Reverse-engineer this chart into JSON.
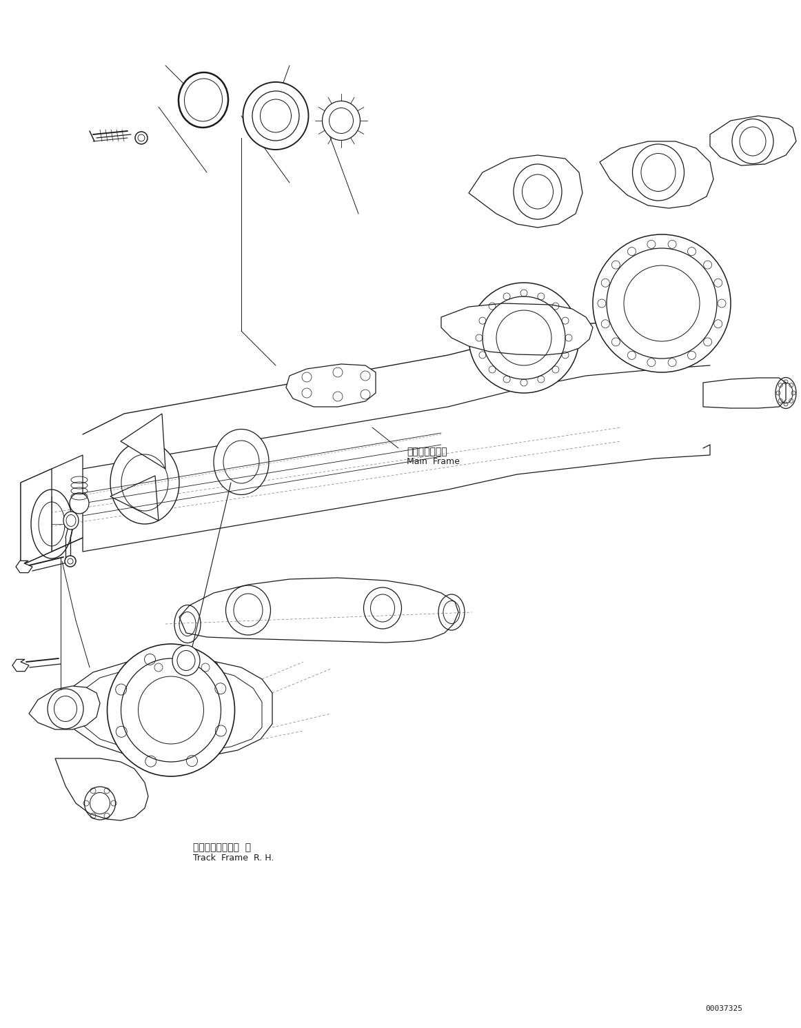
{
  "figure_width": 11.62,
  "figure_height": 14.91,
  "dpi": 100,
  "background_color": "#ffffff",
  "line_color": "#1a1a1a",
  "lw": 0.9,
  "part_number": "00037325",
  "label_main_jp": "メインフレーム",
  "label_main_en": "Main  Frame",
  "label_track_jp": "トラックフレーム  右",
  "label_track_en": "Track  Frame  R. H."
}
